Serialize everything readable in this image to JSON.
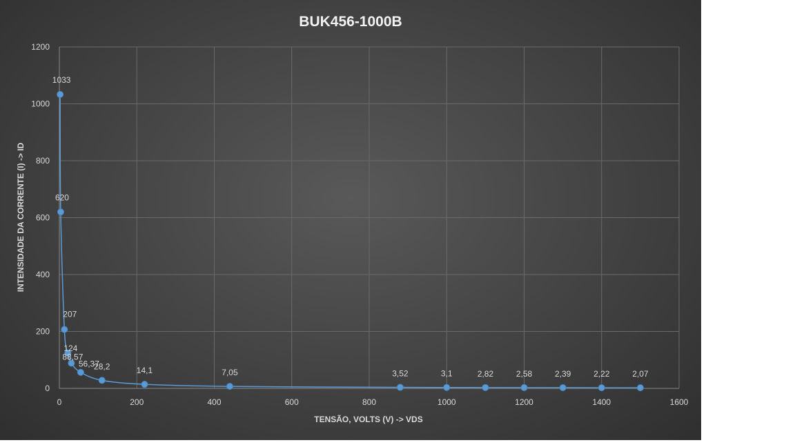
{
  "chart_data": {
    "type": "scatter",
    "title": "BUK456-1000B",
    "xlabel": "TENSÃO, VOLTS (V)  -> VDS",
    "ylabel": "INTENSIDADE DA CORRENTE (I) -> ID",
    "xlim": [
      0,
      1600
    ],
    "ylim": [
      0,
      1200
    ],
    "xticks": [
      "0",
      "200",
      "400",
      "600",
      "800",
      "1000",
      "1200",
      "1400",
      "1600"
    ],
    "yticks": [
      "0",
      "200",
      "400",
      "600",
      "800",
      "1000",
      "1200"
    ],
    "grid": true,
    "legend": "none",
    "smoothed_line": true,
    "series": [
      {
        "points": [
          {
            "x": 2,
            "y": 1033,
            "label": "1033"
          },
          {
            "x": 3.5,
            "y": 620,
            "label": "620"
          },
          {
            "x": 13,
            "y": 207,
            "label": "207"
          },
          {
            "x": 22,
            "y": 124,
            "label": "124"
          },
          {
            "x": 31,
            "y": 88.57,
            "label": "88,57"
          },
          {
            "x": 55,
            "y": 56.37,
            "label": "56,37"
          },
          {
            "x": 110,
            "y": 28.2,
            "label": "28,2"
          },
          {
            "x": 220,
            "y": 14.1,
            "label": "14,1"
          },
          {
            "x": 440,
            "y": 7.05,
            "label": "7,05"
          },
          {
            "x": 880,
            "y": 3.52,
            "label": "3,52"
          },
          {
            "x": 1000,
            "y": 3.1,
            "label": "3,1"
          },
          {
            "x": 1100,
            "y": 2.82,
            "label": "2,82"
          },
          {
            "x": 1200,
            "y": 2.58,
            "label": "2,58"
          },
          {
            "x": 1300,
            "y": 2.39,
            "label": "2,39"
          },
          {
            "x": 1400,
            "y": 2.22,
            "label": "2,22"
          },
          {
            "x": 1500,
            "y": 2.07,
            "label": "2,07"
          }
        ]
      }
    ],
    "colors": {
      "series": "#5b9bd5",
      "background": "#404040",
      "text": "#d9d9d9"
    }
  }
}
